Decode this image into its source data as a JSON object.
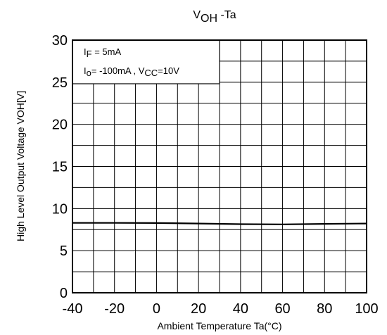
{
  "chart_data": {
    "type": "line",
    "title": {
      "main": "V",
      "sub": "OH",
      "rest": " -Ta"
    },
    "xlabel": "Ambient Temperature Ta(°C)",
    "ylabel": "High Level Output Voltage VOH[V]",
    "xlim": [
      -40,
      100
    ],
    "ylim": [
      0,
      30
    ],
    "xticks": [
      "-40",
      "-20",
      "0",
      "20",
      "40",
      "60",
      "80",
      "100"
    ],
    "yticks": [
      "0",
      "5",
      "10",
      "15",
      "20",
      "25",
      "30"
    ],
    "grid": true,
    "legend": {
      "line1": {
        "a": "I",
        "a_sub": "F",
        "b": " = 5mA"
      },
      "line2": {
        "a": "I",
        "a_sub": "o",
        "b": "= -100mA , V",
        "b_sub": "CC",
        "c": "=10V"
      }
    },
    "series": [
      {
        "color": "#000000",
        "x": [
          -40,
          -20,
          0,
          20,
          40,
          60,
          80,
          100
        ],
        "y": [
          8.3,
          8.3,
          8.28,
          8.22,
          8.15,
          8.12,
          8.18,
          8.22
        ]
      }
    ]
  }
}
